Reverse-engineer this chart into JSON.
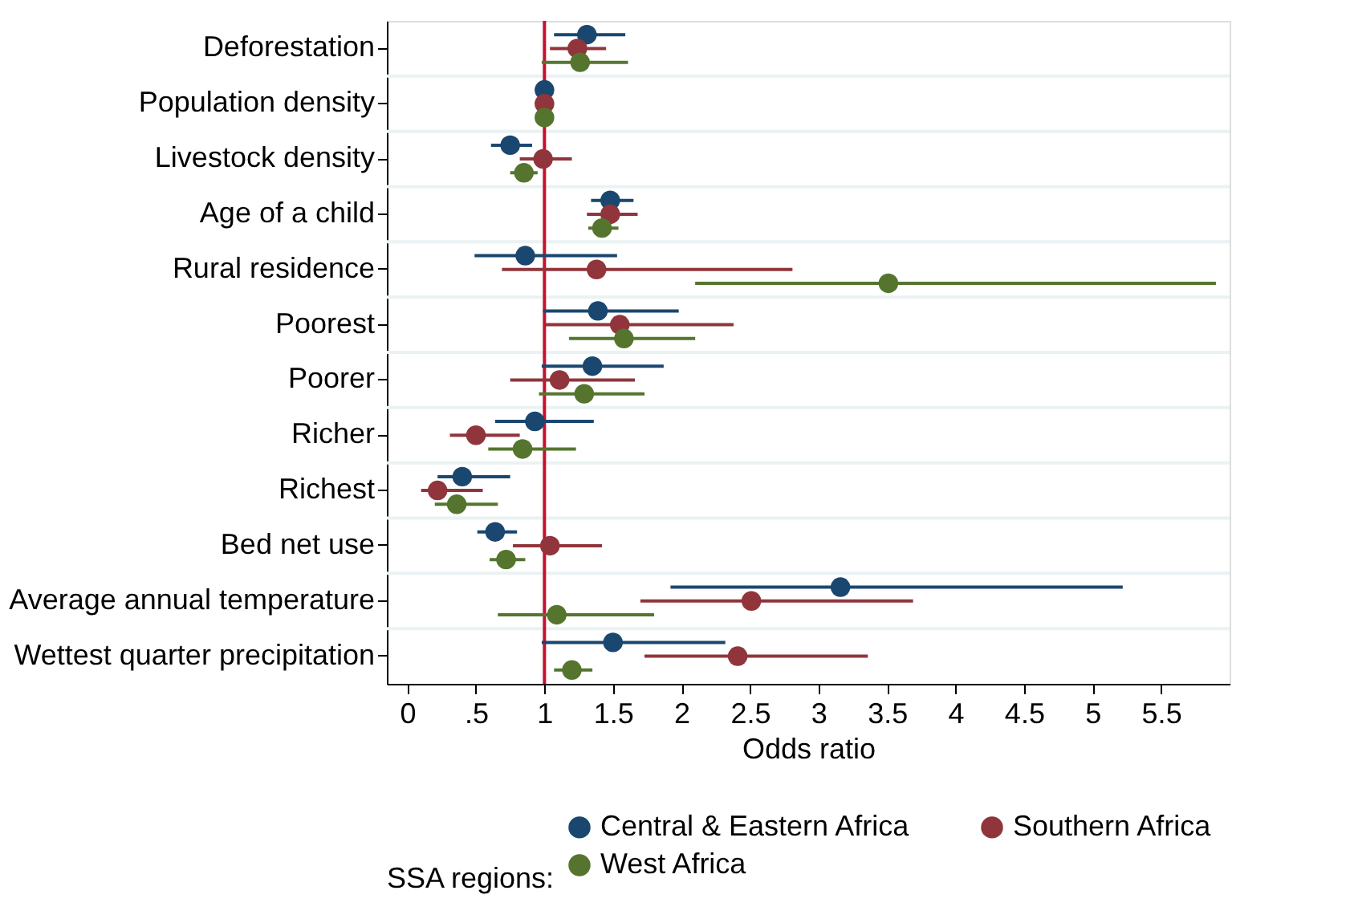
{
  "chart_data": {
    "type": "scatter",
    "orientation": "horizontal",
    "xlabel": "Odds ratio",
    "legend_title": "SSA regions:",
    "legend": "bottom",
    "marker": "circle",
    "grid": "y",
    "categories": [
      "Deforestation",
      "Population density",
      "Livestock density",
      "Age of a child",
      "Rural residence",
      "Poorest",
      "Poorer",
      "Richer",
      "Richest",
      "Bed net use",
      "Average annual temperature",
      "Wettest quarter precipitation"
    ],
    "xlim": [
      -0.15,
      6.0
    ],
    "xticks": [
      0,
      {
        "value": 0.5,
        "label": ".5"
      },
      1,
      1.5,
      2,
      2.5,
      3,
      3.5,
      4,
      4.5,
      5,
      5.5
    ],
    "ref_lines": [
      {
        "axis": "x",
        "value": 1,
        "color": "#c8102e"
      }
    ],
    "series": [
      {
        "name": "Central & Eastern Africa",
        "color": "#1a476f",
        "values": [
          1.31,
          1.0,
          0.75,
          1.48,
          0.86,
          1.39,
          1.35,
          0.93,
          0.4,
          0.64,
          3.16,
          1.5
        ],
        "errors": [
          [
            1.07,
            1.59
          ],
          null,
          [
            0.61,
            0.91
          ],
          [
            1.34,
            1.65
          ],
          [
            0.49,
            1.53
          ],
          [
            0.99,
            1.98
          ],
          [
            0.98,
            1.87
          ],
          [
            0.64,
            1.36
          ],
          [
            0.22,
            0.75
          ],
          [
            0.51,
            0.8
          ],
          [
            1.92,
            5.22
          ],
          [
            0.98,
            2.32
          ]
        ]
      },
      {
        "name": "Southern Africa",
        "color": "#90353b",
        "values": [
          1.24,
          1.0,
          0.99,
          1.48,
          1.38,
          1.55,
          1.11,
          0.5,
          0.22,
          1.04,
          2.51,
          2.41
        ],
        "errors": [
          [
            1.04,
            1.45
          ],
          null,
          [
            0.82,
            1.2
          ],
          [
            1.31,
            1.68
          ],
          [
            0.69,
            2.81
          ],
          [
            1.01,
            2.38
          ],
          [
            0.75,
            1.66
          ],
          [
            0.31,
            0.82
          ],
          [
            0.1,
            0.55
          ],
          [
            0.77,
            1.42
          ],
          [
            1.7,
            3.69
          ],
          [
            1.73,
            3.36
          ]
        ]
      },
      {
        "name": "West Africa",
        "color": "#55752f",
        "values": [
          1.26,
          1.0,
          0.85,
          1.42,
          3.51,
          1.58,
          1.29,
          0.84,
          0.36,
          0.72,
          1.09,
          1.2
        ],
        "errors": [
          [
            0.98,
            1.61
          ],
          null,
          [
            0.75,
            0.95
          ],
          [
            1.32,
            1.54
          ],
          [
            2.1,
            5.9
          ],
          [
            1.18,
            2.1
          ],
          [
            0.96,
            1.73
          ],
          [
            0.59,
            1.23
          ],
          [
            0.2,
            0.66
          ],
          [
            0.6,
            0.86
          ],
          [
            0.66,
            1.8
          ],
          [
            1.07,
            1.35
          ]
        ]
      }
    ]
  }
}
